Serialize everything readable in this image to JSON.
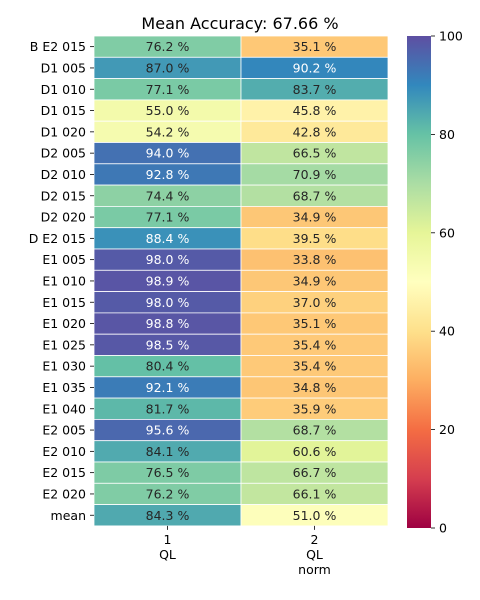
{
  "chart_data": {
    "type": "heatmap",
    "title": "Mean Accuracy: 67.66 %",
    "rows": [
      "B E2 015",
      "D1 005",
      "D1 010",
      "D1 015",
      "D1 020",
      "D2 005",
      "D2 010",
      "D2 015",
      "D2 020",
      "D E2 015",
      "E1 005",
      "E1 010",
      "E1 015",
      "E1 020",
      "E1 025",
      "E1 030",
      "E1 035",
      "E1 040",
      "E2 005",
      "E2 010",
      "E2 015",
      "E2 020",
      "mean"
    ],
    "columns": [
      {
        "index": "1",
        "label_lines": [
          "QL"
        ]
      },
      {
        "index": "2",
        "label_lines": [
          "QL",
          "norm"
        ]
      }
    ],
    "values": [
      [
        76.2,
        35.1
      ],
      [
        87.0,
        90.2
      ],
      [
        77.1,
        83.7
      ],
      [
        55.0,
        45.8
      ],
      [
        54.2,
        42.8
      ],
      [
        94.0,
        66.5
      ],
      [
        92.8,
        70.9
      ],
      [
        74.4,
        68.7
      ],
      [
        77.1,
        34.9
      ],
      [
        88.4,
        39.5
      ],
      [
        98.0,
        33.8
      ],
      [
        98.9,
        34.9
      ],
      [
        98.0,
        37.0
      ],
      [
        98.8,
        35.1
      ],
      [
        98.5,
        35.4
      ],
      [
        80.4,
        35.4
      ],
      [
        92.1,
        34.8
      ],
      [
        81.7,
        35.9
      ],
      [
        95.6,
        68.7
      ],
      [
        84.1,
        60.6
      ],
      [
        76.5,
        66.7
      ],
      [
        76.2,
        66.1
      ],
      [
        84.3,
        51.0
      ]
    ],
    "value_suffix": " %",
    "colormap": "Spectral",
    "colorbar": {
      "range": [
        0,
        100
      ],
      "ticks": [
        0,
        20,
        40,
        60,
        80,
        100
      ]
    }
  }
}
